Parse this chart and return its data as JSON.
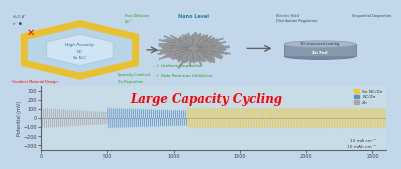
{
  "bg_color": "#c2d8ea",
  "hex_fill": "#b8d4e8",
  "hex_edge": "#e8c030",
  "inner_hex_fill": "#d0e4f4",
  "nano_sphere_color": "#909090",
  "disc_top_color": "#a8b8cc",
  "disc_body_color": "#8898ac",
  "disc_bot_color": "#7888a0",
  "title": "Large Capacity Cycling",
  "ylabel": "Potential (mV)",
  "xlabel_note1": "10 mA cm⁻²",
  "xlabel_note2": "10 mAh cm⁻²",
  "legend_labels": [
    "Sn NC/Zn",
    "NC/Zn",
    "Zn"
  ],
  "legend_colors": [
    "#f0c830",
    "#6090c8",
    "#a8a8a8"
  ],
  "zn_end": 500,
  "nc_end": 1100,
  "sn_end": 2600,
  "amp": 110,
  "ylim": [
    -350,
    350
  ],
  "xlim": [
    0,
    2600
  ],
  "xticks": [
    0,
    500,
    1000,
    1500,
    2000,
    2500
  ],
  "yticks": [
    -300,
    -200,
    -100,
    0,
    100,
    200,
    300
  ],
  "chart_bg": "#c8dce8"
}
